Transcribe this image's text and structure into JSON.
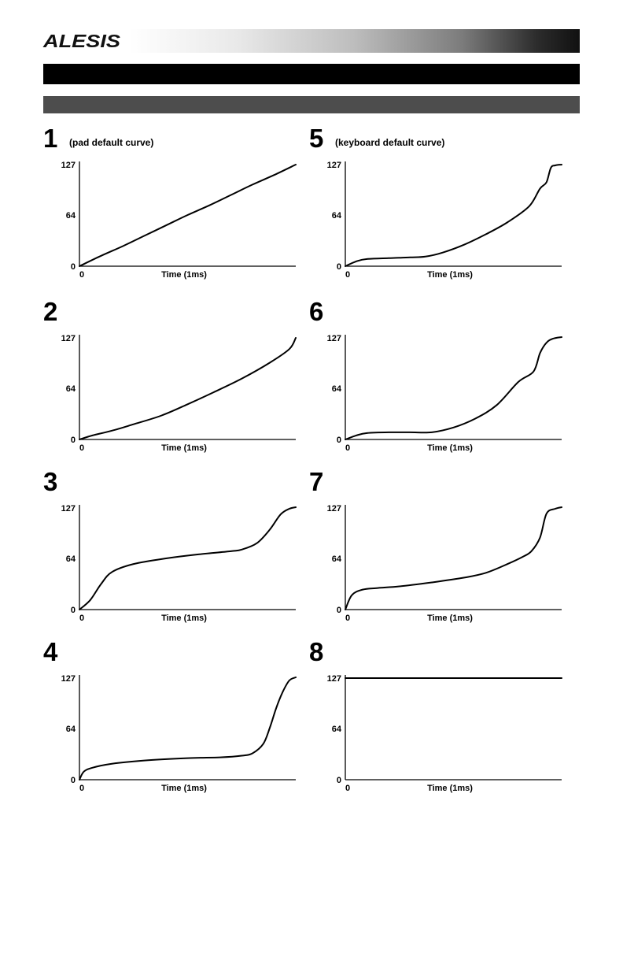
{
  "header": {
    "brand": "ALESIS"
  },
  "chart_data": [
    {
      "type": "line",
      "number": "1",
      "note": "(pad default curve)",
      "xlabel": "Time (1ms)",
      "x_tick": "0",
      "y_ticks": [
        "0",
        "64",
        "127"
      ],
      "ylim": [
        0,
        127
      ],
      "xlim": [
        0,
        1
      ],
      "x": [
        0,
        0.1,
        0.2,
        0.3,
        0.4,
        0.5,
        0.6,
        0.7,
        0.8,
        0.9,
        1.0
      ],
      "y": [
        0,
        13,
        25,
        38,
        51,
        64,
        76,
        89,
        102,
        114,
        127
      ]
    },
    {
      "type": "line",
      "number": "5",
      "note": "(keyboard default curve)",
      "xlabel": "Time (1ms)",
      "x_tick": "0",
      "y_ticks": [
        "0",
        "64",
        "127"
      ],
      "ylim": [
        0,
        127
      ],
      "xlim": [
        0,
        1
      ],
      "x": [
        0,
        0.05,
        0.1,
        0.2,
        0.3,
        0.37,
        0.45,
        0.55,
        0.65,
        0.75,
        0.85,
        0.9,
        0.93,
        0.95,
        0.97,
        1.0
      ],
      "y": [
        0,
        6,
        9,
        10,
        11,
        12,
        17,
        27,
        40,
        55,
        75,
        97,
        105,
        123,
        126,
        127
      ]
    },
    {
      "type": "line",
      "number": "2",
      "note": "",
      "xlabel": "Time (1ms)",
      "x_tick": "0",
      "y_ticks": [
        "0",
        "64",
        "127"
      ],
      "ylim": [
        0,
        127
      ],
      "xlim": [
        0,
        1
      ],
      "x": [
        0,
        0.06,
        0.15,
        0.25,
        0.38,
        0.5,
        0.62,
        0.75,
        0.88,
        0.97,
        1.0
      ],
      "y": [
        0,
        5,
        11,
        19,
        30,
        44,
        59,
        76,
        96,
        113,
        127
      ]
    },
    {
      "type": "line",
      "number": "6",
      "note": "",
      "xlabel": "Time (1ms)",
      "x_tick": "0",
      "y_ticks": [
        "0",
        "64",
        "127"
      ],
      "ylim": [
        0,
        127
      ],
      "xlim": [
        0,
        1
      ],
      "x": [
        0,
        0.05,
        0.1,
        0.2,
        0.3,
        0.4,
        0.5,
        0.6,
        0.7,
        0.8,
        0.87,
        0.9,
        0.93,
        0.96,
        1.0
      ],
      "y": [
        0,
        5,
        8,
        9,
        9,
        9,
        15,
        26,
        43,
        72,
        85,
        108,
        121,
        126,
        128
      ]
    },
    {
      "type": "line",
      "number": "3",
      "note": "",
      "xlabel": "Time (1ms)",
      "x_tick": "0",
      "y_ticks": [
        "0",
        "64",
        "127"
      ],
      "ylim": [
        0,
        127
      ],
      "xlim": [
        0,
        1
      ],
      "x": [
        0,
        0.05,
        0.1,
        0.15,
        0.25,
        0.4,
        0.55,
        0.7,
        0.75,
        0.82,
        0.88,
        0.93,
        0.97,
        1.0
      ],
      "y": [
        0,
        12,
        32,
        47,
        57,
        64,
        69,
        73,
        75,
        83,
        100,
        119,
        126,
        128
      ]
    },
    {
      "type": "line",
      "number": "7",
      "note": "",
      "xlabel": "Time (1ms)",
      "x_tick": "0",
      "y_ticks": [
        "0",
        "64",
        "127"
      ],
      "ylim": [
        0,
        127
      ],
      "xlim": [
        0,
        1
      ],
      "x": [
        0,
        0.03,
        0.08,
        0.15,
        0.25,
        0.4,
        0.55,
        0.65,
        0.75,
        0.82,
        0.86,
        0.9,
        0.93,
        0.97,
        1.0
      ],
      "y": [
        0,
        18,
        25,
        27,
        29,
        34,
        40,
        46,
        57,
        66,
        73,
        90,
        120,
        126,
        128
      ]
    },
    {
      "type": "line",
      "number": "4",
      "note": "",
      "xlabel": "Time (1ms)",
      "x_tick": "0",
      "y_ticks": [
        "0",
        "64",
        "127"
      ],
      "ylim": [
        0,
        127
      ],
      "xlim": [
        0,
        1
      ],
      "x": [
        0,
        0.02,
        0.06,
        0.15,
        0.3,
        0.5,
        0.65,
        0.75,
        0.8,
        0.85,
        0.88,
        0.91,
        0.94,
        0.97,
        1.0
      ],
      "y": [
        0,
        10,
        15,
        20,
        24,
        27,
        28,
        30,
        33,
        45,
        65,
        90,
        110,
        124,
        128
      ]
    },
    {
      "type": "line",
      "number": "8",
      "note": "",
      "xlabel": "Time (1ms)",
      "x_tick": "0",
      "y_ticks": [
        "0",
        "64",
        "127"
      ],
      "ylim": [
        0,
        127
      ],
      "xlim": [
        0,
        1
      ],
      "x": [
        0,
        1.0
      ],
      "y": [
        127,
        127
      ]
    }
  ]
}
